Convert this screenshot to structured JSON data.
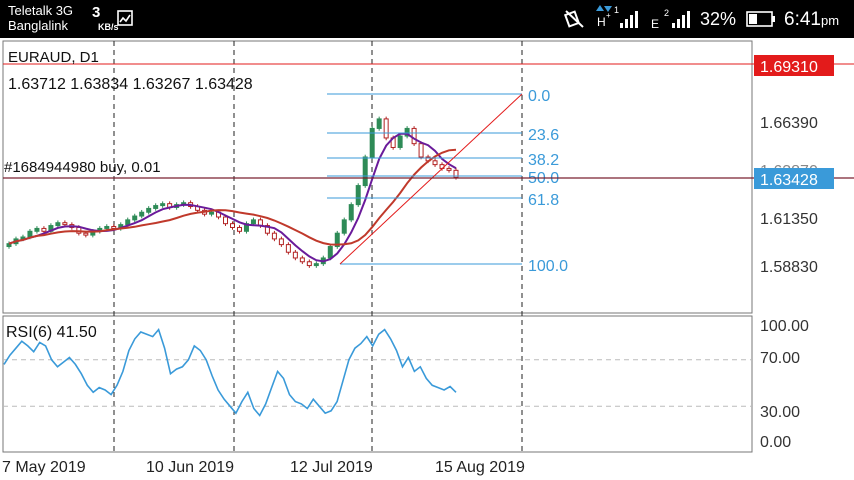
{
  "status_bar": {
    "carrier_1": "Teletalk 3G",
    "carrier_2": "Banglalink",
    "net_speed": "3",
    "net_speed_unit": "KB/s",
    "battery_percent": "32%",
    "time": "6:41",
    "time_suffix": "pm",
    "icons": [
      "image-icon",
      "mute-icon",
      "hplus-data-icon",
      "signal-1-icon",
      "edge-data-icon",
      "signal-2-icon",
      "battery-icon"
    ]
  },
  "chart": {
    "symbol": "EURAUD, D1",
    "ohlc": "1.63712 1.63834 1.63267 1.63428",
    "order_label": "#1684944980 buy, 0.01",
    "price_box_top": "1.69310",
    "price_box_current": "1.63428",
    "price_axis_labels": [
      "1.66390",
      "1.63870",
      "1.61350",
      "1.58830"
    ],
    "price_axis_top_partial": "1.6931",
    "fib_levels": [
      "0.0",
      "23.6",
      "38.2",
      "50.0",
      "61.8",
      "100.0"
    ],
    "rsi_label": "RSI(6) 41.50",
    "rsi_axis_labels": [
      "100.00",
      "70.00",
      "30.00",
      "0.00"
    ],
    "date_labels": [
      "7 May 2019",
      "10 Jun 2019",
      "12 Jul 2019",
      "15 Aug 2019"
    ],
    "colors": {
      "bull_candle": "#2e8b57",
      "bear_candle": "#b22222",
      "ma_fast": "#6a1b9a",
      "ma_slow": "#c0392b",
      "fib": "#3a9ad9",
      "rsi_line": "#3a9ad9",
      "price_box_red": "#e31b1b",
      "price_box_blue": "#3a9ad9"
    }
  },
  "chart_data": {
    "type": "candlestick",
    "title": "EURAUD, D1",
    "price_axis_ticks": [
      1.6639,
      1.6387,
      1.6135,
      1.5883
    ],
    "current_price": 1.63428,
    "line_price": 1.6931,
    "last_candle_ohlc": {
      "open": 1.63712,
      "high": 1.63834,
      "low": 1.63267,
      "close": 1.63428
    },
    "fibonacci": {
      "levels": [
        0.0,
        23.6,
        38.2,
        50.0,
        61.8,
        100.0
      ],
      "high": 1.6745,
      "low": 1.5871
    },
    "rsi": {
      "period": 6,
      "value": 41.5,
      "levels": [
        100,
        70,
        30,
        0
      ]
    },
    "date_ticks": [
      "7 May 2019",
      "10 Jun 2019",
      "12 Jul 2019",
      "15 Aug 2019"
    ]
  }
}
